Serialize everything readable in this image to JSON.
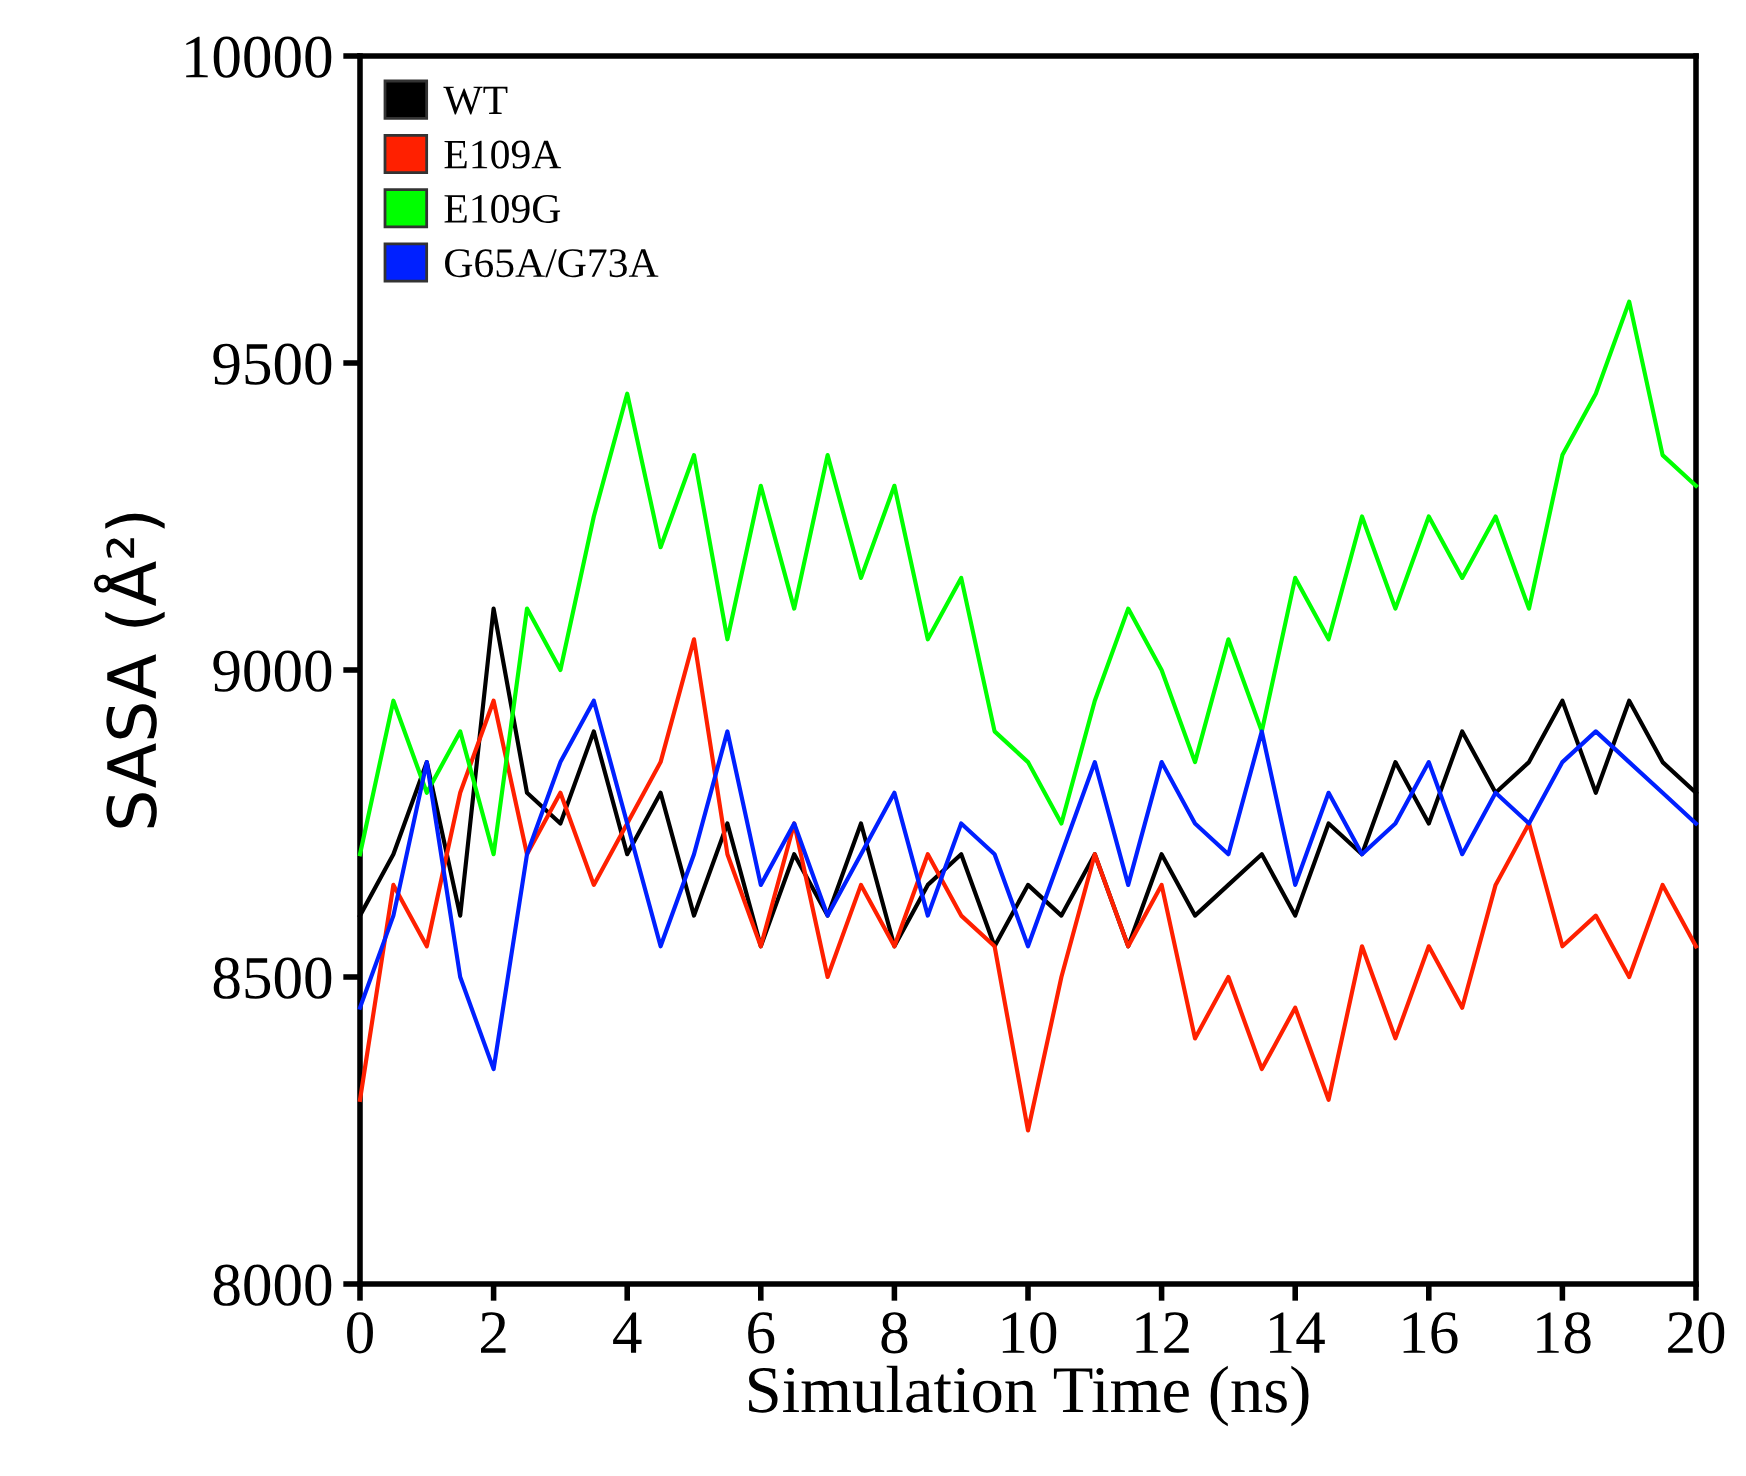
{
  "chart_data": {
    "type": "line",
    "xlabel": "Simulation Time (ns)",
    "ylabel": "SASA (Å²)",
    "x": [
      0,
      0.5,
      1,
      1.5,
      2,
      2.5,
      3,
      3.5,
      4,
      4.5,
      5,
      5.5,
      6,
      6.5,
      7,
      7.5,
      8,
      8.5,
      9,
      9.5,
      10,
      10.5,
      11,
      11.5,
      12,
      12.5,
      13,
      13.5,
      14,
      14.5,
      15,
      15.5,
      16,
      16.5,
      17,
      17.5,
      18,
      18.5,
      19,
      19.5,
      20
    ],
    "series": [
      {
        "name": "WT",
        "color": "#000000",
        "values": [
          8600,
          8700,
          8850,
          8600,
          9100,
          8800,
          8750,
          8900,
          8700,
          8800,
          8600,
          8750,
          8550,
          8700,
          8600,
          8750,
          8550,
          8650,
          8700,
          8550,
          8650,
          8600,
          8700,
          8550,
          8700,
          8600,
          8650,
          8700,
          8600,
          8750,
          8700,
          8850,
          8750,
          8900,
          8800,
          8850,
          8950,
          8800,
          8950,
          8850,
          8800
        ]
      },
      {
        "name": "E109A",
        "color": "#ff2000",
        "values": [
          8300,
          8650,
          8550,
          8800,
          8950,
          8700,
          8800,
          8650,
          8750,
          8850,
          9050,
          8700,
          8550,
          8750,
          8500,
          8650,
          8550,
          8700,
          8600,
          8550,
          8250,
          8500,
          8700,
          8550,
          8650,
          8400,
          8500,
          8350,
          8450,
          8300,
          8550,
          8400,
          8550,
          8450,
          8650,
          8750,
          8550,
          8600,
          8500,
          8650,
          8550
        ]
      },
      {
        "name": "E109G",
        "color": "#00ff00",
        "values": [
          8700,
          8950,
          8800,
          8900,
          8700,
          9100,
          9000,
          9250,
          9450,
          9200,
          9350,
          9050,
          9300,
          9100,
          9350,
          9150,
          9300,
          9050,
          9150,
          8900,
          8850,
          8750,
          8950,
          9100,
          9000,
          8850,
          9050,
          8900,
          9150,
          9050,
          9250,
          9100,
          9250,
          9150,
          9250,
          9100,
          9350,
          9450,
          9600,
          9350,
          9300
        ]
      },
      {
        "name": "G65A/G73A",
        "color": "#0020ff",
        "values": [
          8450,
          8600,
          8850,
          8500,
          8350,
          8700,
          8850,
          8950,
          8750,
          8550,
          8700,
          8900,
          8650,
          8750,
          8600,
          8700,
          8800,
          8600,
          8750,
          8700,
          8550,
          8700,
          8850,
          8650,
          8850,
          8750,
          8700,
          8900,
          8650,
          8800,
          8700,
          8750,
          8850,
          8700,
          8800,
          8750,
          8850,
          8900,
          8850,
          8800,
          8750
        ]
      }
    ],
    "xlim": [
      0,
      20
    ],
    "xticks": [
      0,
      2,
      4,
      6,
      8,
      10,
      12,
      14,
      16,
      18,
      20
    ],
    "ylim": [
      8000,
      10000
    ],
    "yticks": [
      8000,
      8500,
      9000,
      9500,
      10000
    ],
    "grid": false,
    "legend": "top left",
    "marker": "none",
    "line_style": "solid"
  }
}
